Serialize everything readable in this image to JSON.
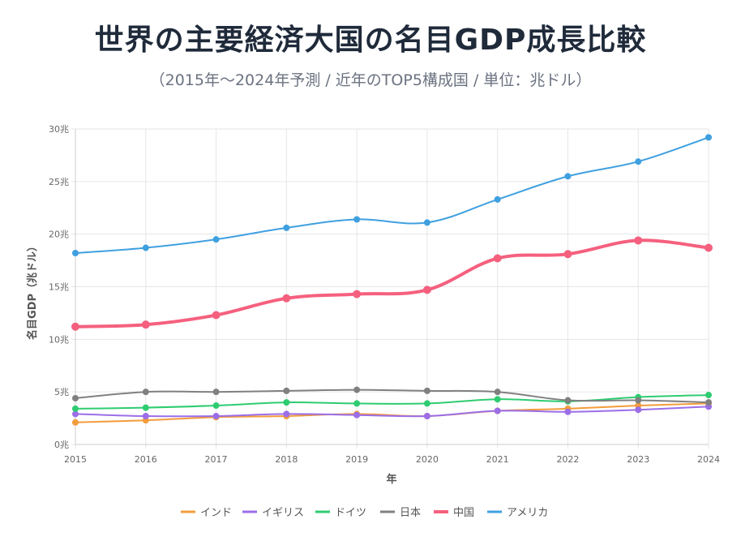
{
  "title": "世界の主要経済大国の名目GDP成長比較",
  "subtitle": "（2015年〜2024年予測 / 近年のTOP5構成国 / 単位：兆ドル）",
  "chart_data": {
    "type": "line",
    "xlabel": "年",
    "ylabel": "名目GDP（兆ドル）",
    "x": [
      "2015",
      "2016",
      "2017",
      "2018",
      "2019",
      "2020",
      "2021",
      "2022",
      "2023",
      "2024"
    ],
    "ylim": [
      0,
      30
    ],
    "yticks": [
      "0兆",
      "5兆",
      "10兆",
      "15兆",
      "20兆",
      "25兆",
      "30兆"
    ],
    "grid": true,
    "legend_position": "bottom",
    "series": [
      {
        "name": "インド",
        "color": "#f39c3c",
        "values": [
          2.1,
          2.3,
          2.6,
          2.7,
          2.9,
          2.7,
          3.2,
          3.4,
          3.7,
          3.9
        ]
      },
      {
        "name": "イギリス",
        "color": "#9b6ee8",
        "values": [
          2.9,
          2.7,
          2.7,
          2.9,
          2.8,
          2.7,
          3.2,
          3.1,
          3.3,
          3.6
        ]
      },
      {
        "name": "ドイツ",
        "color": "#2ecc71",
        "values": [
          3.4,
          3.5,
          3.7,
          4.0,
          3.9,
          3.9,
          4.3,
          4.1,
          4.5,
          4.7
        ]
      },
      {
        "name": "日本",
        "color": "#808080",
        "values": [
          4.4,
          5.0,
          5.0,
          5.1,
          5.2,
          5.1,
          5.0,
          4.2,
          4.2,
          4.0
        ]
      },
      {
        "name": "中国",
        "color": "#f5607e",
        "values": [
          11.2,
          11.4,
          12.3,
          13.9,
          14.3,
          14.7,
          17.7,
          18.1,
          19.4,
          18.7
        ],
        "emphasis": true
      },
      {
        "name": "アメリカ",
        "color": "#3fa0e0",
        "values": [
          18.2,
          18.7,
          19.5,
          20.6,
          21.4,
          21.1,
          23.3,
          25.5,
          26.9,
          29.2
        ]
      }
    ]
  }
}
